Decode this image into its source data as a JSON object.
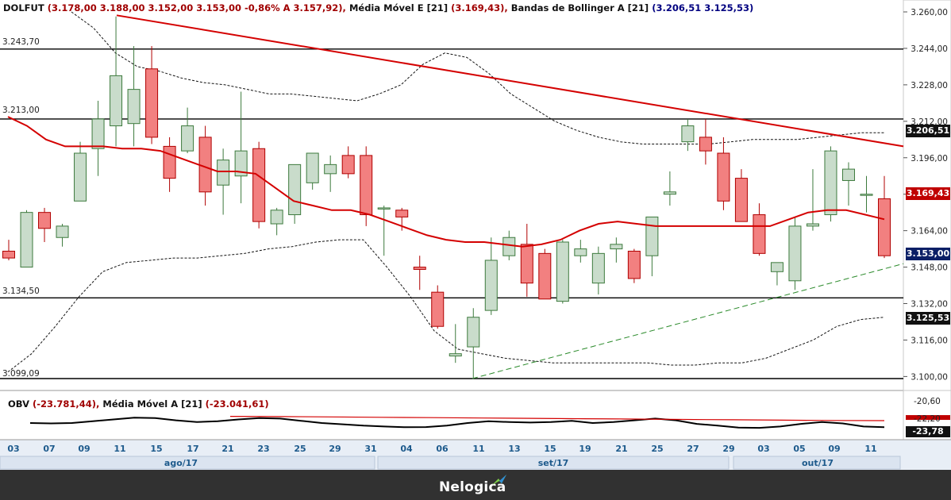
{
  "header": {
    "symbol": "DOLFUT",
    "ohlc": "(3.178,00  3.188,00  3.152,00  3.153,00  -0,86%  A 3.157,92),",
    "ema_label": "Média Móvel E [21]",
    "ema_value": "(3.169,43),",
    "bb_label": "Bandas de Bollinger A [21]",
    "bb_value_open": "(",
    "bb_upper": "3.206,51",
    "bb_lower": "3.125,53",
    "bb_value_close": ")"
  },
  "obv_header": {
    "label": "OBV",
    "value": "(-23.781,44),",
    "ma_label": "Média Móvel A [21]",
    "ma_value": "(-23.041,61)"
  },
  "price_tags": {
    "bb_upper": "3.206,51",
    "ema": "3.169,43",
    "close": "3.153,00",
    "bb_lower": "3.125,53"
  },
  "level_labels": [
    "3.243,70",
    "3.213,00",
    "3.134,50",
    "3.099,09"
  ],
  "obv_tags": {
    "current": "-23,78",
    "top": "-20,60",
    "mid": "-22,20"
  },
  "brand": "Nelogica",
  "colors": {
    "bull_fill": "#c9dccb",
    "bull_stroke": "#3d7a3d",
    "bear_fill": "#f28080",
    "bear_stroke": "#b00000",
    "ema": "#d40000",
    "trendline_down": "#d40000",
    "trendline_up": "#2a8a2a",
    "axis_text": "#1d5a8c",
    "axis_bg": "#e8eef6"
  },
  "chart_data": [
    {
      "type": "candlestick",
      "title": "DOLFUT",
      "ylim": [
        3099.09,
        3260.0
      ],
      "y_ticks": [
        3100,
        3116,
        3132,
        3148,
        3164,
        3180,
        3196,
        3212,
        3228,
        3244,
        3260
      ],
      "y_tick_labels": [
        "3.100,00",
        "3.116,00",
        "3.132,00",
        "3.148,00",
        "3.164,00",
        "3.180,00",
        "3.196,00",
        "3.212,00",
        "3.228,00",
        "3.244,00",
        "3.260,00"
      ],
      "x_ticks": [
        "03",
        "07",
        "09",
        "11",
        "15",
        "17",
        "21",
        "23",
        "25",
        "29",
        "31",
        "04",
        "06",
        "11",
        "13",
        "15",
        "19",
        "21",
        "25",
        "27",
        "29",
        "03",
        "05",
        "09",
        "11"
      ],
      "x_months": [
        "ago/17",
        "set/17",
        "out/17"
      ],
      "candles": [
        {
          "o": 3155.0,
          "h": 3160.0,
          "l": 3151.0,
          "c": 3152.0
        },
        {
          "o": 3148.0,
          "h": 3173.0,
          "l": 3148.0,
          "c": 3172.0
        },
        {
          "o": 3172.0,
          "h": 3174.0,
          "l": 3159.0,
          "c": 3165.0
        },
        {
          "o": 3161.0,
          "h": 3167.0,
          "l": 3157.0,
          "c": 3166.0
        },
        {
          "o": 3177.0,
          "h": 3203.0,
          "l": 3177.0,
          "c": 3198.0
        },
        {
          "o": 3200.0,
          "h": 3221.0,
          "l": 3188.0,
          "c": 3213.0
        },
        {
          "o": 3210.0,
          "h": 3258.0,
          "l": 3201.0,
          "c": 3232.0
        },
        {
          "o": 3211.0,
          "h": 3245.0,
          "l": 3201.0,
          "c": 3226.0
        },
        {
          "o": 3235.0,
          "h": 3245.0,
          "l": 3202.0,
          "c": 3205.0
        },
        {
          "o": 3201.0,
          "h": 3205.0,
          "l": 3181.0,
          "c": 3187.0
        },
        {
          "o": 3199.0,
          "h": 3218.0,
          "l": 3198.0,
          "c": 3210.0
        },
        {
          "o": 3205.0,
          "h": 3210.0,
          "l": 3175.0,
          "c": 3181.0
        },
        {
          "o": 3184.0,
          "h": 3200.0,
          "l": 3171.0,
          "c": 3195.0
        },
        {
          "o": 3188.0,
          "h": 3225.0,
          "l": 3176.0,
          "c": 3199.0
        },
        {
          "o": 3200.0,
          "h": 3203.0,
          "l": 3165.0,
          "c": 3168.0
        },
        {
          "o": 3167.0,
          "h": 3174.0,
          "l": 3162.0,
          "c": 3173.0
        },
        {
          "o": 3171.0,
          "h": 3193.0,
          "l": 3167.0,
          "c": 3193.0
        },
        {
          "o": 3185.0,
          "h": 3198.0,
          "l": 3182.0,
          "c": 3198.0
        },
        {
          "o": 3189.0,
          "h": 3197.0,
          "l": 3181.0,
          "c": 3193.0
        },
        {
          "o": 3197.0,
          "h": 3201.0,
          "l": 3187.0,
          "c": 3189.0
        },
        {
          "o": 3197.0,
          "h": 3201.0,
          "l": 3166.0,
          "c": 3171.0
        },
        {
          "o": 3174.0,
          "h": 3175.0,
          "l": 3153.0,
          "c": 3174.0
        },
        {
          "o": 3173.0,
          "h": 3174.0,
          "l": 3164.0,
          "c": 3170.0
        },
        {
          "o": 3148.0,
          "h": 3153.0,
          "l": 3138.0,
          "c": 3147.0
        },
        {
          "o": 3137.0,
          "h": 3140.0,
          "l": 3121.0,
          "c": 3122.0
        },
        {
          "o": 3109.0,
          "h": 3123.0,
          "l": 3106.0,
          "c": 3110.0
        },
        {
          "o": 3113.0,
          "h": 3130.0,
          "l": 3099.0,
          "c": 3126.0
        },
        {
          "o": 3129.0,
          "h": 3161.0,
          "l": 3127.0,
          "c": 3151.0
        },
        {
          "o": 3153.0,
          "h": 3164.0,
          "l": 3151.0,
          "c": 3161.0
        },
        {
          "o": 3158.0,
          "h": 3167.0,
          "l": 3135.0,
          "c": 3141.0
        },
        {
          "o": 3154.0,
          "h": 3156.0,
          "l": 3134.0,
          "c": 3134.0
        },
        {
          "o": 3133.0,
          "h": 3160.0,
          "l": 3132.0,
          "c": 3159.0
        },
        {
          "o": 3153.0,
          "h": 3160.0,
          "l": 3150.0,
          "c": 3156.0
        },
        {
          "o": 3141.0,
          "h": 3157.0,
          "l": 3136.0,
          "c": 3154.0
        },
        {
          "o": 3156.0,
          "h": 3161.0,
          "l": 3150.0,
          "c": 3158.0
        },
        {
          "o": 3155.0,
          "h": 3156.0,
          "l": 3141.0,
          "c": 3143.0
        },
        {
          "o": 3153.0,
          "h": 3170.0,
          "l": 3144.0,
          "c": 3170.0
        },
        {
          "o": 3180.0,
          "h": 3190.0,
          "l": 3175.0,
          "c": 3181.0
        },
        {
          "o": 3203.0,
          "h": 3213.0,
          "l": 3199.0,
          "c": 3210.0
        },
        {
          "o": 3205.0,
          "h": 3213.0,
          "l": 3193.0,
          "c": 3199.0
        },
        {
          "o": 3198.0,
          "h": 3205.0,
          "l": 3173.0,
          "c": 3177.0
        },
        {
          "o": 3187.0,
          "h": 3191.0,
          "l": 3168.0,
          "c": 3168.0
        },
        {
          "o": 3171.0,
          "h": 3176.0,
          "l": 3153.0,
          "c": 3154.0
        },
        {
          "o": 3146.0,
          "h": 3150.0,
          "l": 3140.0,
          "c": 3150.0
        },
        {
          "o": 3142.0,
          "h": 3170.0,
          "l": 3138.0,
          "c": 3166.0
        },
        {
          "o": 3166.0,
          "h": 3191.0,
          "l": 3164.0,
          "c": 3167.0
        },
        {
          "o": 3171.0,
          "h": 3201.0,
          "l": 3168.0,
          "c": 3199.0
        },
        {
          "o": 3186.0,
          "h": 3194.0,
          "l": 3175.0,
          "c": 3191.0
        },
        {
          "o": 3180.0,
          "h": 3188.0,
          "l": 3172.0,
          "c": 3180.0
        },
        {
          "o": 3178.0,
          "h": 3188.0,
          "l": 3152.0,
          "c": 3153.0
        }
      ],
      "ema21": [
        3214,
        3210,
        3204,
        3201,
        3201,
        3201,
        3200,
        3200,
        3199,
        3196,
        3193,
        3190,
        3190,
        3189,
        3183,
        3177,
        3175,
        3173,
        3173,
        3171,
        3168,
        3165,
        3162,
        3160,
        3159,
        3159,
        3158,
        3157,
        3158,
        3160,
        3164,
        3167,
        3168,
        3167,
        3166,
        3166,
        3166,
        3166,
        3166,
        3166,
        3166,
        3169,
        3172,
        3173,
        3173,
        3171,
        3169
      ],
      "bb_upper": [
        3260,
        3253,
        3242,
        3236,
        3234,
        3231,
        3229,
        3228,
        3226,
        3224,
        3224,
        3223,
        3222,
        3221,
        3224,
        3228,
        3237,
        3242,
        3240,
        3233,
        3224,
        3218,
        3212,
        3208,
        3205,
        3203,
        3202,
        3202,
        3202,
        3202,
        3203,
        3204,
        3204,
        3204,
        3205,
        3206,
        3207,
        3207
      ],
      "bb_lower": [
        3102,
        3110,
        3122,
        3135,
        3146,
        3150,
        3151,
        3152,
        3152,
        3153,
        3154,
        3156,
        3157,
        3159,
        3160,
        3160,
        3148,
        3135,
        3120,
        3112,
        3110,
        3108,
        3107,
        3106,
        3106,
        3106,
        3106,
        3106,
        3105,
        3105,
        3106,
        3106,
        3108,
        3112,
        3116,
        3122,
        3125,
        3126
      ],
      "levels": [
        3243.7,
        3213.0,
        3134.5,
        3099.09
      ],
      "ema_last": 3169.43,
      "close_last": 3153.0,
      "bb_upper_last": 3206.51,
      "bb_lower_last": 3125.53
    },
    {
      "type": "line",
      "title": "OBV",
      "ylim": [
        -25.0,
        -20.0
      ],
      "y_ticks": [
        -20.6,
        -22.2,
        -23.78
      ],
      "obv": [
        -23.3,
        -23.35,
        -23.3,
        -23.1,
        -22.9,
        -22.7,
        -22.75,
        -23.0,
        -23.2,
        -23.1,
        -22.9,
        -22.75,
        -22.8,
        -23.05,
        -23.3,
        -23.45,
        -23.6,
        -23.7,
        -23.78,
        -23.76,
        -23.6,
        -23.3,
        -23.1,
        -23.2,
        -23.25,
        -23.2,
        -23.05,
        -23.3,
        -23.2,
        -23.0,
        -22.8,
        -23.0,
        -23.4,
        -23.6,
        -23.82,
        -23.85,
        -23.7,
        -23.4,
        -23.2,
        -23.35,
        -23.7,
        -23.78
      ],
      "obv_ma": [
        -22.55,
        -22.58,
        -22.62,
        -22.66,
        -22.7,
        -22.74,
        -22.78,
        -22.82,
        -22.86,
        -22.9,
        -22.94,
        -22.98,
        -23.02,
        -23.04
      ],
      "obv_last": -23.78,
      "obv_ma_last": -23.04
    }
  ]
}
